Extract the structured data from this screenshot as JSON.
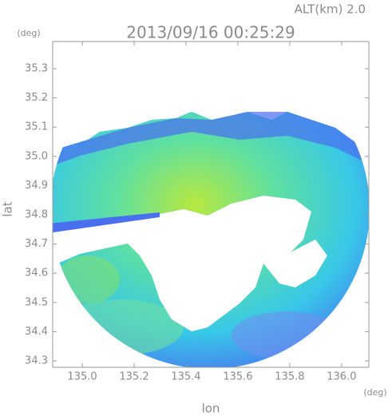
{
  "chart_data": {
    "type": "radar-map",
    "title": "2013/09/16 00:25:29",
    "subtitle": "ALT(km) 2.0",
    "y_unit": "(deg)",
    "x_unit": "(deg)",
    "y_label": "lat",
    "x_label": "lon",
    "xlim": [
      134.886,
      136.105
    ],
    "xticks": [
      {
        "value": 135.0,
        "label": "135.0"
      },
      135.2,
      135.4,
      135.6,
      135.8,
      {
        "value": 136.0,
        "label": "136.0"
      }
    ],
    "ylim": [
      34.278,
      35.393
    ],
    "yticks": [
      34.3,
      34.4,
      34.5,
      34.6,
      34.7,
      34.8,
      34.9,
      {
        "value": 35.0,
        "label": "35.0"
      },
      35.1,
      35.2,
      35.3
    ]
  }
}
